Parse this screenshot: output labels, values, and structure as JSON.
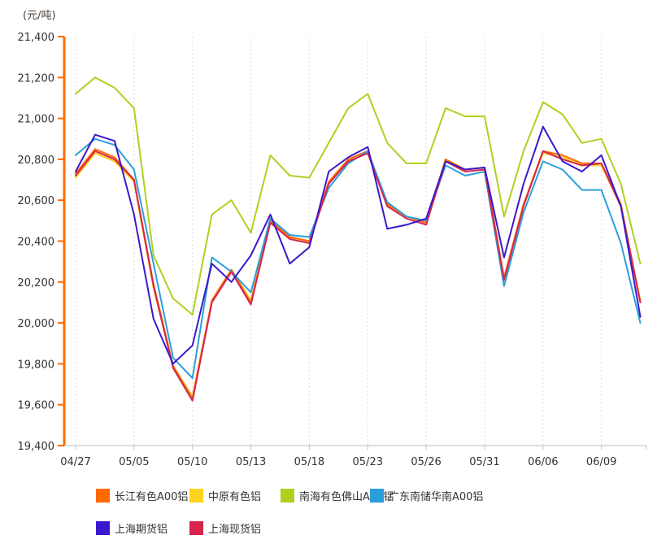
{
  "unit_label": "(元/吨)",
  "chart_data": {
    "type": "line",
    "title": "",
    "ylabel": "(元/吨)",
    "y_min": 19400,
    "y_max": 21400,
    "y_tick_labels": [
      "21,400",
      "21,200",
      "21,000",
      "20,800",
      "20,600",
      "20,400",
      "20,200",
      "20,000",
      "19,800",
      "19,600",
      "19,400"
    ],
    "x_tick_labels": [
      "04/27",
      "05/05",
      "05/10",
      "05/13",
      "05/18",
      "05/23",
      "05/26",
      "05/31",
      "06/06",
      "06/09"
    ],
    "points_per_label": 3,
    "num_points": 30,
    "grid": "vertical-dotted",
    "legend_position": "bottom",
    "series": [
      {
        "name": "长江有色A00铝",
        "color": "#ff6a00",
        "values": [
          20730,
          20850,
          20810,
          20700,
          20190,
          19790,
          19630,
          20110,
          20260,
          20100,
          20500,
          20420,
          20400,
          20690,
          20800,
          20840,
          20580,
          20520,
          20490,
          20800,
          20750,
          20760,
          20220,
          20580,
          20840,
          20820,
          20780,
          20780,
          20580,
          20100
        ]
      },
      {
        "name": "中原有色铝",
        "color": "#ffd21e",
        "values": [
          20710,
          20830,
          20790,
          20690,
          20170,
          19790,
          19640,
          20110,
          20260,
          20110,
          20500,
          20420,
          20400,
          20690,
          20800,
          20840,
          20580,
          20520,
          20490,
          20800,
          20750,
          20760,
          20220,
          20580,
          20830,
          20810,
          20770,
          20770,
          20570,
          20110
        ]
      },
      {
        "name": "南海有色佛山A00铝",
        "color": "#aed11f",
        "values": [
          21120,
          21200,
          21150,
          21050,
          20330,
          20120,
          20040,
          20530,
          20600,
          20440,
          20820,
          20720,
          20710,
          20880,
          21050,
          21120,
          20880,
          20780,
          20780,
          21050,
          21010,
          21010,
          20520,
          20840,
          21080,
          21020,
          20880,
          20900,
          20680,
          20290
        ]
      },
      {
        "name": "广东南储华南A00铝",
        "color": "#2b9fdc",
        "values": [
          20820,
          20900,
          20870,
          20750,
          20290,
          19830,
          19730,
          20320,
          20250,
          20150,
          20510,
          20430,
          20420,
          20660,
          20780,
          20840,
          20590,
          20520,
          20500,
          20770,
          20720,
          20740,
          20180,
          20540,
          20790,
          20750,
          20650,
          20650,
          20390,
          20000
        ]
      },
      {
        "name": "上海期货铝",
        "color": "#3d17cd",
        "values": [
          20740,
          20920,
          20890,
          20530,
          20020,
          19800,
          19890,
          20290,
          20200,
          20330,
          20530,
          20290,
          20370,
          20740,
          20810,
          20860,
          20460,
          20480,
          20510,
          20790,
          20750,
          20760,
          20320,
          20680,
          20960,
          20790,
          20740,
          20820,
          20570,
          20030
        ]
      },
      {
        "name": "上海现货铝",
        "color": "#d8254e",
        "values": [
          20720,
          20840,
          20800,
          20700,
          20180,
          19780,
          19620,
          20100,
          20250,
          20090,
          20490,
          20410,
          20390,
          20680,
          20790,
          20830,
          20570,
          20510,
          20480,
          20790,
          20740,
          20750,
          20210,
          20570,
          20840,
          20800,
          20770,
          20780,
          20570,
          20100
        ]
      }
    ]
  }
}
